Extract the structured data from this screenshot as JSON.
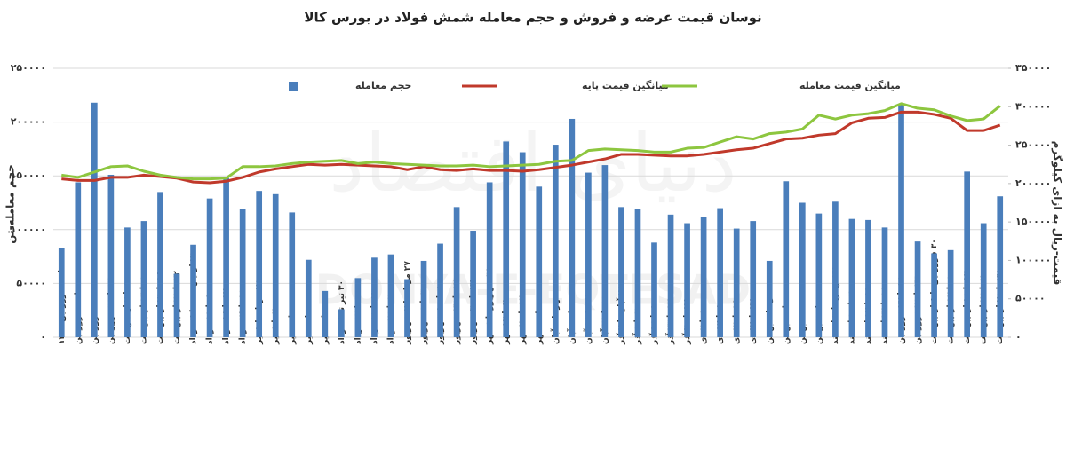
{
  "chart_data": {
    "type": "bar",
    "title": "نوسان قیمت عرضه و فروش و حجم معامله شمش فولاد در بورس کالا",
    "y_label": "حجم معامله-تن",
    "y2_label": "قیمت-ریال به ازای کیلوگرم",
    "watermark": "DONYA-E-EQTESAD",
    "watermark_fa": "دنیای اقتصاد",
    "grid": true,
    "categories": [
      "۴ تا ۱۰ فروردین ۱۴۰۳",
      "۱۱ تا ۱۷ فروردین",
      "۱۸ تا ۲۴ فروردین",
      "۲۵ تا ۳۱ فروردین",
      "۱ تا ۷ اردیبهشت",
      "۸ تا ۱۴ اردیبهشت",
      "۱۵ تا ۲۱ اردیبهشت",
      "۲۲ تا ۲۸ اردیبهشت",
      "۲۹ اردیبهشت تا ۴ خرداد",
      "۵ تا ۱۱ خرداد",
      "۱۲ تا ۱۸ خرداد",
      "۱۹ تا ۲۵ خرداد",
      "۲۶ خرداد تا ۱ تیر",
      "۲ تا ۸ تیر",
      "۹ تا ۱۵ تیر",
      "۱۶ تا ۲۲ تیر",
      "۲۳ تا ۲۹ تیر",
      "۳۰ تیر تا ۵ مرداد",
      "۶ تا ۱۲ مرداد",
      "۱۳ تا ۱۹ مرداد",
      "۲۰ تا ۲۶ مرداد",
      "۲۷ مرداد تا ۲ شهریور",
      "۳ تا ۹ شهریور",
      "۱۰ تا ۱۶ شهریور",
      "۱۷ تا ۲۳ شهریور",
      "۲۴ تا ۳۰ شهریور",
      "۳۱ شهریور تا ۶ مهر",
      "۷ تا ۱۳ مهر",
      "۱۴ تا ۲۰ مهر",
      "۲۱ تا ۲۷ مهر",
      "۲۸ مهر تا ۴ آبان",
      "۵ تا ۱۱ آبان",
      "۱۲ تا ۱۸ آبان",
      "۱۹ تا ۲۵ آبان",
      "۲۶ آبان تا ۲ آذر",
      "۳ تا ۹ آذر",
      "۱۰ تا ۱۶ آذر",
      "۱۷ تا ۲۳ آذر",
      "۲۴ تا ۳۰ آذر",
      "۱ تا ۷ دی",
      "۸ تا ۱۴ دی",
      "۱۵ تا ۲۱ دی",
      "۲۲ تا ۲۸ دی",
      "۲۹ دی تا ۵ بهمن",
      "۶ تا ۱۲ بهمن",
      "۱۳ تا ۱۹ بهمن",
      "۲۰ تا ۲۶ بهمن",
      "۲۷ بهمن تا ۳ اسفند",
      "۴ تا ۱۰ اسفند",
      "۱۱ تا ۱۷ اسفند",
      "۱۸ تا ۲۴ اسفند",
      "۱۶ تا ۲۲ فروردین",
      "۲۳ تا ۲۹ فروردین",
      "۳۰ فروردین تا ۵ اردیبهشت",
      "۶ تا ۱۲ اردیبهشت",
      "۱۳ تا ۱۹ اردیبهشت",
      "۲۰ تا ۲۶ اردیبهشت",
      "۲۷ تا ۲۹ اردیبهشت"
    ],
    "series": [
      {
        "name": "حجم معامله",
        "type": "bar",
        "color": "#4a7ebb",
        "values": [
          83000,
          144000,
          218000,
          151000,
          102000,
          108000,
          135000,
          59000,
          86000,
          129000,
          148000,
          119000,
          136000,
          133000,
          116000,
          72000,
          43000,
          26000,
          55000,
          74000,
          77000,
          54000,
          71000,
          87000,
          121000,
          99000,
          144000,
          182000,
          172000,
          140000,
          179000,
          203000,
          153000,
          160000,
          121000,
          119000,
          88000,
          114000,
          106000,
          112000,
          120000,
          101000,
          108000,
          71000,
          145000,
          125000,
          115000,
          126000,
          110000,
          109000,
          102000,
          216000,
          89000,
          78000,
          81000,
          154000,
          106000,
          131000
        ]
      },
      {
        "name": "میانگین قیمت پایه",
        "type": "line",
        "axis": "y2",
        "color": "#c0392b",
        "values": [
          206000,
          204000,
          204000,
          208000,
          208000,
          211000,
          209000,
          207000,
          202000,
          201000,
          203000,
          208000,
          215000,
          219000,
          222000,
          225000,
          224000,
          225000,
          224000,
          223000,
          222000,
          218000,
          222000,
          218000,
          217000,
          219000,
          217000,
          217000,
          216000,
          218000,
          221000,
          224000,
          228000,
          232000,
          238000,
          238000,
          237000,
          236000,
          236000,
          238000,
          241000,
          244000,
          246000,
          252000,
          258000,
          259000,
          263000,
          265000,
          279000,
          285000,
          286000,
          293000,
          293000,
          290000,
          285000,
          269000,
          269000,
          276000
        ]
      },
      {
        "name": "میانگین قیمت معامله",
        "type": "line",
        "axis": "y2",
        "color": "#8dc63f",
        "values": [
          211000,
          208000,
          215000,
          222000,
          223000,
          216000,
          211000,
          208000,
          206000,
          206000,
          207000,
          222000,
          222000,
          223000,
          226000,
          228000,
          229000,
          230000,
          226000,
          228000,
          226000,
          225000,
          224000,
          223000,
          223000,
          224000,
          222000,
          223000,
          224000,
          225000,
          229000,
          230000,
          243000,
          245000,
          244000,
          243000,
          241000,
          241000,
          246000,
          247000,
          254000,
          261000,
          258000,
          265000,
          267000,
          271000,
          289000,
          284000,
          289000,
          291000,
          295000,
          304000,
          298000,
          296000,
          288000,
          282000,
          284000,
          301000
        ]
      }
    ],
    "ylim": [
      0,
      250000
    ],
    "yticks": [
      {
        "value": 0,
        "label": "۰"
      },
      {
        "value": 50000,
        "label": "۵۰۰۰۰"
      },
      {
        "value": 100000,
        "label": "۱۰۰۰۰۰"
      },
      {
        "value": 150000,
        "label": "۱۵۰۰۰۰"
      },
      {
        "value": 200000,
        "label": "۲۰۰۰۰۰"
      },
      {
        "value": 250000,
        "label": "۲۵۰۰۰۰"
      }
    ],
    "y2lim": [
      0,
      350000
    ],
    "y2ticks": [
      {
        "value": 0,
        "label": "۰"
      },
      {
        "value": 50000,
        "label": "۵۰۰۰۰"
      },
      {
        "value": 100000,
        "label": "۱۰۰۰۰۰"
      },
      {
        "value": 150000,
        "label": "۱۵۰۰۰۰"
      },
      {
        "value": 200000,
        "label": "۲۰۰۰۰۰"
      },
      {
        "value": 250000,
        "label": "۲۵۰۰۰۰"
      },
      {
        "value": 300000,
        "label": "۳۰۰۰۰۰"
      },
      {
        "value": 350000,
        "label": "۳۵۰۰۰۰"
      }
    ]
  }
}
